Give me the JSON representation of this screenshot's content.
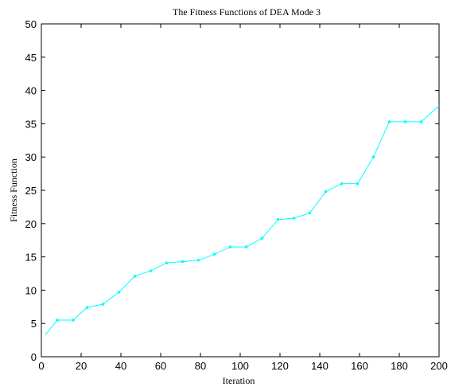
{
  "chart_data": {
    "type": "line",
    "title": "The Fitness Functions of  DEA Mode 3",
    "xlabel": "Iteration",
    "ylabel": "Fitness Function",
    "xlim": [
      0,
      200
    ],
    "ylim": [
      0,
      50
    ],
    "xticks": [
      0,
      20,
      40,
      60,
      80,
      100,
      120,
      140,
      160,
      180,
      200
    ],
    "yticks": [
      0,
      5,
      10,
      15,
      20,
      25,
      30,
      35,
      40,
      45,
      50
    ],
    "grid": false,
    "series_color": "#00FFFF",
    "series": [
      {
        "x": [
          2,
          8,
          16,
          23,
          31,
          39,
          47,
          55,
          63,
          71,
          79,
          87,
          95,
          103,
          111,
          119,
          127,
          135,
          143,
          151,
          159,
          167,
          175,
          183,
          191,
          200
        ],
        "values": [
          3.3,
          5.5,
          5.5,
          7.4,
          7.9,
          9.7,
          12.1,
          12.9,
          14.1,
          14.3,
          14.5,
          15.4,
          16.5,
          16.5,
          17.8,
          20.6,
          20.8,
          21.6,
          24.8,
          26.0,
          26.0,
          30.0,
          35.3,
          35.3,
          35.3,
          37.7
        ]
      }
    ]
  }
}
